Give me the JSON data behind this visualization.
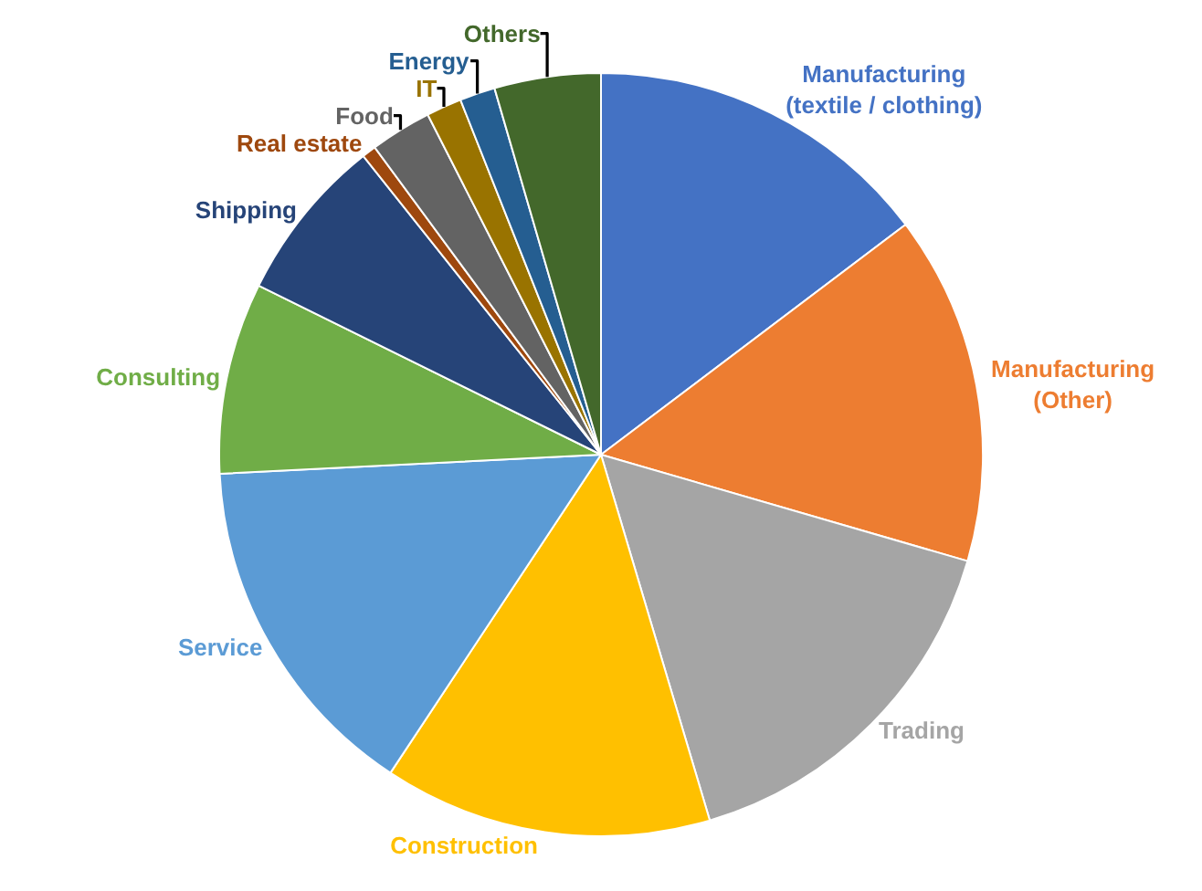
{
  "chart_data": {
    "type": "pie",
    "categories": [
      "Manufacturing (textile / clothing)",
      "Manufacturing (Other)",
      "Trading",
      "Construction",
      "Service",
      "Consulting",
      "Shipping",
      "Real estate",
      "Food",
      "IT",
      "Energy",
      "Others"
    ],
    "values": [
      14.7,
      14.8,
      15.9,
      13.9,
      14.9,
      8.1,
      7.0,
      0.6,
      2.6,
      1.5,
      1.5,
      4.5
    ],
    "colors": [
      "#4472c4",
      "#ed7d31",
      "#a5a5a5",
      "#ffc000",
      "#5b9bd5",
      "#70ad47",
      "#264478",
      "#9e480e",
      "#636363",
      "#997300",
      "#255e91",
      "#43682b"
    ]
  }
}
